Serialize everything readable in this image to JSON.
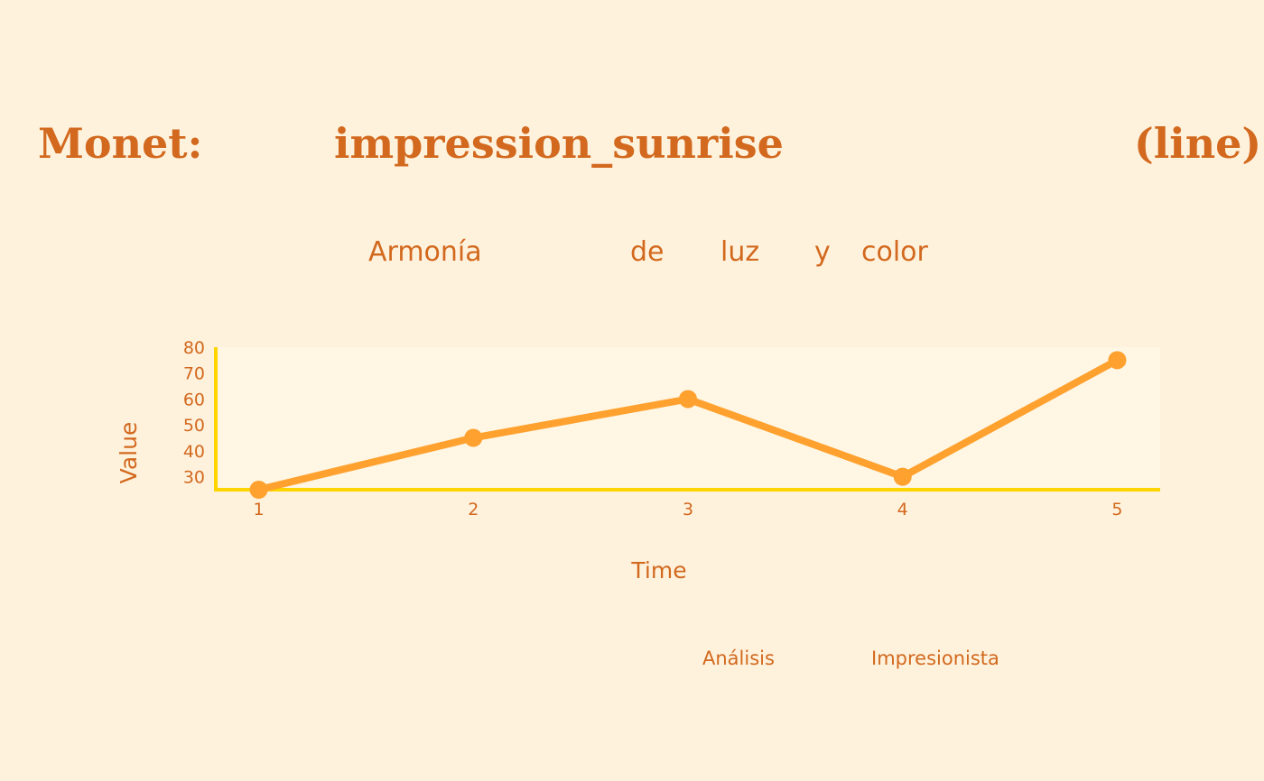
{
  "title_words": [
    "Monet:",
    "impression_sunrise",
    "(line)"
  ],
  "subtitle_words": [
    "Armonía",
    "de",
    "luz",
    "y",
    "color"
  ],
  "footer_words": [
    "Análisis",
    "Impresionista"
  ],
  "colors": {
    "background": "#FFF2DD",
    "text": "#D2691E",
    "line": "#FFA12E",
    "axis": "#FFD500",
    "plot_bg": "#FFF6E4"
  },
  "chart_data": {
    "type": "line",
    "x": [
      1,
      2,
      3,
      4,
      5
    ],
    "series": [
      {
        "values": [
          25,
          45,
          60,
          30,
          75
        ]
      }
    ],
    "xlabel": "Time",
    "ylabel": "Value",
    "x_ticks": [
      "1",
      "2",
      "3",
      "4",
      "5"
    ],
    "y_ticks": [
      "30",
      "40",
      "50",
      "60",
      "70",
      "80"
    ],
    "xlim": [
      0.8,
      5.2
    ],
    "ylim": [
      25,
      80
    ],
    "grid": false,
    "markers": true
  }
}
